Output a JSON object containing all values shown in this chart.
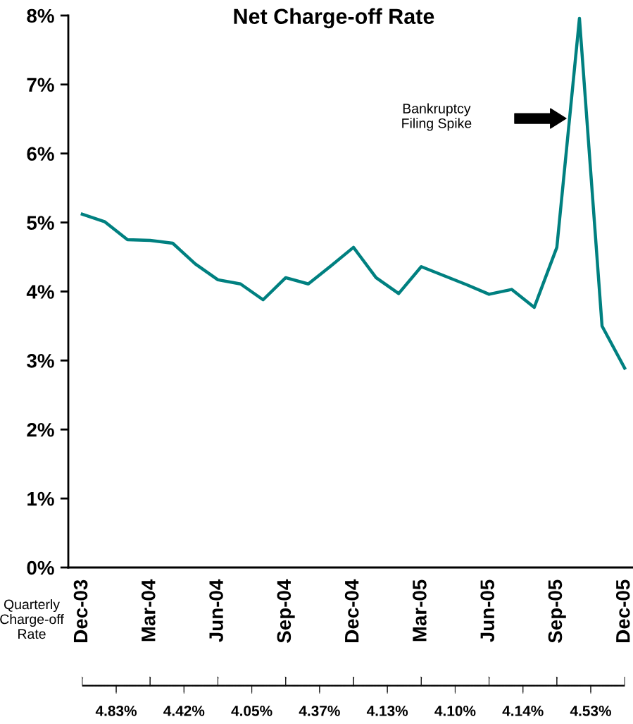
{
  "chart_data": {
    "type": "line",
    "title": "Net Charge-off Rate",
    "categories": [
      "Dec-03",
      null,
      null,
      "Mar-04",
      null,
      null,
      "Jun-04",
      null,
      null,
      "Sep-04",
      null,
      null,
      "Dec-04",
      null,
      null,
      "Mar-05",
      null,
      null,
      "Jun-05",
      null,
      null,
      "Sep-05",
      null,
      null,
      "Dec-05"
    ],
    "series": [
      {
        "color": "#008080",
        "values": [
          5.12,
          5.01,
          4.75,
          4.74,
          4.7,
          4.4,
          4.17,
          4.11,
          3.88,
          4.2,
          4.11,
          4.37,
          4.64,
          4.2,
          3.97,
          4.36,
          4.23,
          4.1,
          3.96,
          4.03,
          3.77,
          4.64,
          7.96,
          3.5,
          2.89
        ]
      }
    ],
    "ylim": [
      0,
      8
    ],
    "yticks": [
      {
        "value": 0,
        "label": "0%"
      },
      {
        "value": 1,
        "label": "1%"
      },
      {
        "value": 2,
        "label": "2%"
      },
      {
        "value": 3,
        "label": "3%"
      },
      {
        "value": 4,
        "label": "4%"
      },
      {
        "value": 5,
        "label": "5%"
      },
      {
        "value": 6,
        "label": "6%"
      },
      {
        "value": 7,
        "label": "7%"
      },
      {
        "value": 8,
        "label": "8%"
      }
    ],
    "annotations": [
      "Bankruptcy\nFiling Spike",
      "Quarterly\nCharge-off\nRate",
      "4.83%",
      "4.42%",
      "4.05%",
      "4.37%",
      "4.13%",
      "4.10%",
      "4.14%",
      "4.53%"
    ],
    "grid": false,
    "legend": false,
    "marker": "none",
    "line_style": "solid"
  }
}
